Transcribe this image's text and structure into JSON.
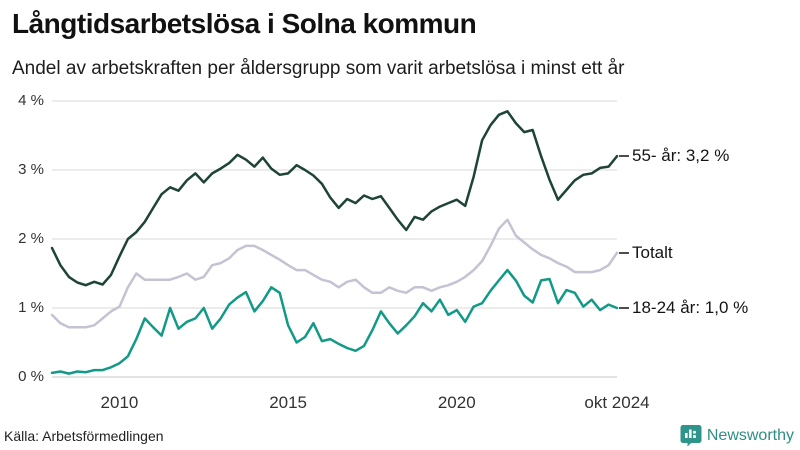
{
  "header": {
    "title": "Långtidsarbetslösa i Solna kommun",
    "subtitle": "Andel av arbetskraften per åldersgrupp som varit arbetslösa i minst ett år"
  },
  "footer": {
    "source": "Källa: Arbetsförmedlingen",
    "brand": "Newsworthy"
  },
  "colors": {
    "series_55": "#1e4339",
    "series_total": "#c5c3d3",
    "series_1824": "#129a87",
    "gridline": "#dadada",
    "zeroline": "#c6c6c6",
    "legend_dash": "#4d4d4d",
    "brand_teal": "#2f958a",
    "text_dark": "#111111"
  },
  "chart_data": {
    "type": "line",
    "title": "Långtidsarbetslösa i Solna kommun",
    "subtitle": "Andel av arbetskraften per åldersgrupp som varit arbetslösa i minst ett år",
    "xlabel": "",
    "ylabel": "",
    "grid": "horizontal",
    "legend_position": "right-of-line-ends",
    "ylim": [
      0,
      4
    ],
    "xlim": [
      2008,
      2024.83
    ],
    "x_unit": "decimal year (Jan 2008 – okt 2024)",
    "y_ticks": [
      {
        "value": 4,
        "label": "4 %"
      },
      {
        "value": 3,
        "label": "3 %"
      },
      {
        "value": 2,
        "label": "2 %"
      },
      {
        "value": 1,
        "label": "1 %"
      },
      {
        "value": 0,
        "label": "0 %"
      }
    ],
    "x_ticks": [
      {
        "value": 2010,
        "label": "2010"
      },
      {
        "value": 2015,
        "label": "2015"
      },
      {
        "value": 2020,
        "label": "2020"
      },
      {
        "value": 2024.75,
        "label": "okt 2024"
      }
    ],
    "x": [
      2008,
      2008.25,
      2008.5,
      2008.75,
      2009,
      2009.25,
      2009.5,
      2009.75,
      2010,
      2010.25,
      2010.5,
      2010.75,
      2011,
      2011.25,
      2011.5,
      2011.75,
      2012,
      2012.25,
      2012.5,
      2012.75,
      2013,
      2013.25,
      2013.5,
      2013.75,
      2014,
      2014.25,
      2014.5,
      2014.75,
      2015,
      2015.25,
      2015.5,
      2015.75,
      2016,
      2016.25,
      2016.5,
      2016.75,
      2017,
      2017.25,
      2017.5,
      2017.75,
      2018,
      2018.25,
      2018.5,
      2018.75,
      2019,
      2019.25,
      2019.5,
      2019.75,
      2020,
      2020.25,
      2020.5,
      2020.75,
      2021,
      2021.25,
      2021.5,
      2021.75,
      2022,
      2022.25,
      2022.5,
      2022.75,
      2023,
      2023.25,
      2023.5,
      2023.75,
      2024,
      2024.25,
      2024.5,
      2024.75
    ],
    "series": [
      {
        "name": "55- år",
        "label": "55- år: 3,2 %",
        "last_value_label": "3,2 %",
        "color": "#1e4339",
        "values": [
          1.87,
          1.62,
          1.45,
          1.37,
          1.33,
          1.38,
          1.34,
          1.48,
          1.75,
          2.0,
          2.1,
          2.25,
          2.45,
          2.65,
          2.75,
          2.7,
          2.85,
          2.95,
          2.82,
          2.95,
          3.02,
          3.1,
          3.22,
          3.15,
          3.05,
          3.18,
          3.02,
          2.93,
          2.95,
          3.07,
          3.0,
          2.92,
          2.8,
          2.6,
          2.45,
          2.58,
          2.52,
          2.63,
          2.58,
          2.62,
          2.45,
          2.28,
          2.13,
          2.32,
          2.28,
          2.4,
          2.47,
          2.52,
          2.57,
          2.48,
          2.9,
          3.43,
          3.65,
          3.8,
          3.85,
          3.68,
          3.55,
          3.58,
          3.2,
          2.86,
          2.57,
          2.71,
          2.85,
          2.93,
          2.95,
          3.03,
          3.05,
          3.2
        ]
      },
      {
        "name": "Totalt",
        "label": "Totalt",
        "last_value_label": "",
        "color": "#c5c3d3",
        "values": [
          0.9,
          0.78,
          0.72,
          0.72,
          0.72,
          0.75,
          0.85,
          0.95,
          1.02,
          1.3,
          1.5,
          1.41,
          1.41,
          1.41,
          1.41,
          1.45,
          1.5,
          1.41,
          1.45,
          1.62,
          1.65,
          1.72,
          1.84,
          1.9,
          1.9,
          1.84,
          1.77,
          1.7,
          1.62,
          1.55,
          1.55,
          1.48,
          1.41,
          1.38,
          1.3,
          1.38,
          1.41,
          1.3,
          1.22,
          1.22,
          1.3,
          1.25,
          1.22,
          1.3,
          1.3,
          1.25,
          1.3,
          1.33,
          1.38,
          1.45,
          1.55,
          1.68,
          1.9,
          2.15,
          2.28,
          2.05,
          1.95,
          1.85,
          1.77,
          1.72,
          1.65,
          1.6,
          1.52,
          1.52,
          1.52,
          1.55,
          1.62,
          1.8
        ]
      },
      {
        "name": "18-24 år",
        "label": "18-24 år: 1,0 %",
        "last_value_label": "1,0 %",
        "color": "#129a87",
        "values": [
          0.06,
          0.08,
          0.05,
          0.08,
          0.07,
          0.1,
          0.1,
          0.14,
          0.2,
          0.3,
          0.55,
          0.85,
          0.72,
          0.6,
          1.0,
          0.7,
          0.8,
          0.85,
          1.0,
          0.7,
          0.85,
          1.05,
          1.15,
          1.23,
          0.95,
          1.1,
          1.3,
          1.22,
          0.75,
          0.5,
          0.58,
          0.78,
          0.52,
          0.55,
          0.48,
          0.42,
          0.38,
          0.45,
          0.68,
          0.95,
          0.78,
          0.63,
          0.75,
          0.88,
          1.07,
          0.95,
          1.12,
          0.9,
          0.97,
          0.8,
          1.02,
          1.07,
          1.25,
          1.4,
          1.55,
          1.4,
          1.18,
          1.08,
          1.4,
          1.42,
          1.07,
          1.26,
          1.22,
          1.02,
          1.12,
          0.97,
          1.05,
          1.0
        ]
      }
    ]
  }
}
